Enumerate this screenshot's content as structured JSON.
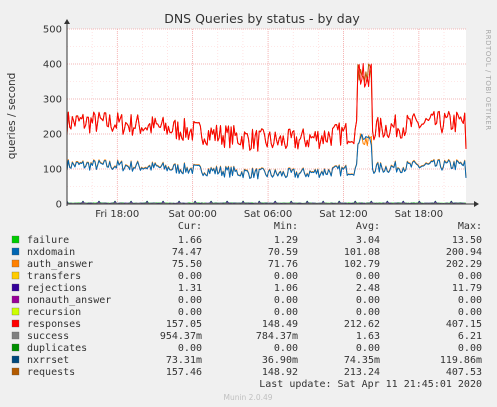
{
  "chart_data": {
    "type": "line",
    "title": "DNS Queries by status - by day",
    "ylabel": "queries / second",
    "xlabel": "",
    "ylim": [
      0,
      500
    ],
    "yticks": [
      0,
      100,
      200,
      300,
      400,
      500
    ],
    "xticks": [
      "Fri 18:00",
      "Sat 00:00",
      "Sat 06:00",
      "Sat 12:00",
      "Sat 18:00"
    ],
    "grid": true,
    "legend_position": "bottom",
    "side_text": "RRDTOOL / TOBI OETIKER",
    "x_start_hour": 14.0,
    "x_end_hour": 45.75,
    "x_tick_hours": [
      18,
      24,
      30,
      36,
      42
    ],
    "columns": [
      "Cur:",
      "Min:",
      "Avg:",
      "Max:"
    ],
    "series": [
      {
        "name": "failure",
        "color": "#00cc00",
        "cur": "1.66",
        "min": "1.29",
        "avg": "3.04",
        "max": "13.50"
      },
      {
        "name": "nxdomain",
        "color": "#0066b3",
        "cur": "74.47",
        "min": "70.59",
        "avg": "101.08",
        "max": "200.94"
      },
      {
        "name": "auth_answer",
        "color": "#ff8000",
        "cur": "75.50",
        "min": "71.76",
        "avg": "102.79",
        "max": "202.29"
      },
      {
        "name": "transfers",
        "color": "#ffcc00",
        "cur": "0.00",
        "min": "0.00",
        "avg": "0.00",
        "max": "0.00"
      },
      {
        "name": "rejections",
        "color": "#330099",
        "cur": "1.31",
        "min": "1.06",
        "avg": "2.48",
        "max": "11.79"
      },
      {
        "name": "nonauth_answer",
        "color": "#990099",
        "cur": "0.00",
        "min": "0.00",
        "avg": "0.00",
        "max": "0.00"
      },
      {
        "name": "recursion",
        "color": "#ccff00",
        "cur": "0.00",
        "min": "0.00",
        "avg": "0.00",
        "max": "0.00"
      },
      {
        "name": "responses",
        "color": "#ff0000",
        "cur": "157.05",
        "min": "148.49",
        "avg": "212.62",
        "max": "407.15"
      },
      {
        "name": "success",
        "color": "#808080",
        "cur": "954.37m",
        "min": "784.37m",
        "avg": "1.63",
        "max": "6.21"
      },
      {
        "name": "duplicates",
        "color": "#008f00",
        "cur": "0.00",
        "min": "0.00",
        "avg": "0.00",
        "max": "0.00"
      },
      {
        "name": "nxrrset",
        "color": "#00487d",
        "cur": "73.31m",
        "min": "36.90m",
        "avg": "74.35m",
        "max": "119.86m"
      },
      {
        "name": "requests",
        "color": "#b35a00",
        "cur": "157.46",
        "min": "148.92",
        "avg": "213.24",
        "max": "407.53"
      }
    ],
    "last_update": "Last update: Sat Apr 11 21:45:01 2020",
    "footer": "Munin 2.0.49"
  }
}
